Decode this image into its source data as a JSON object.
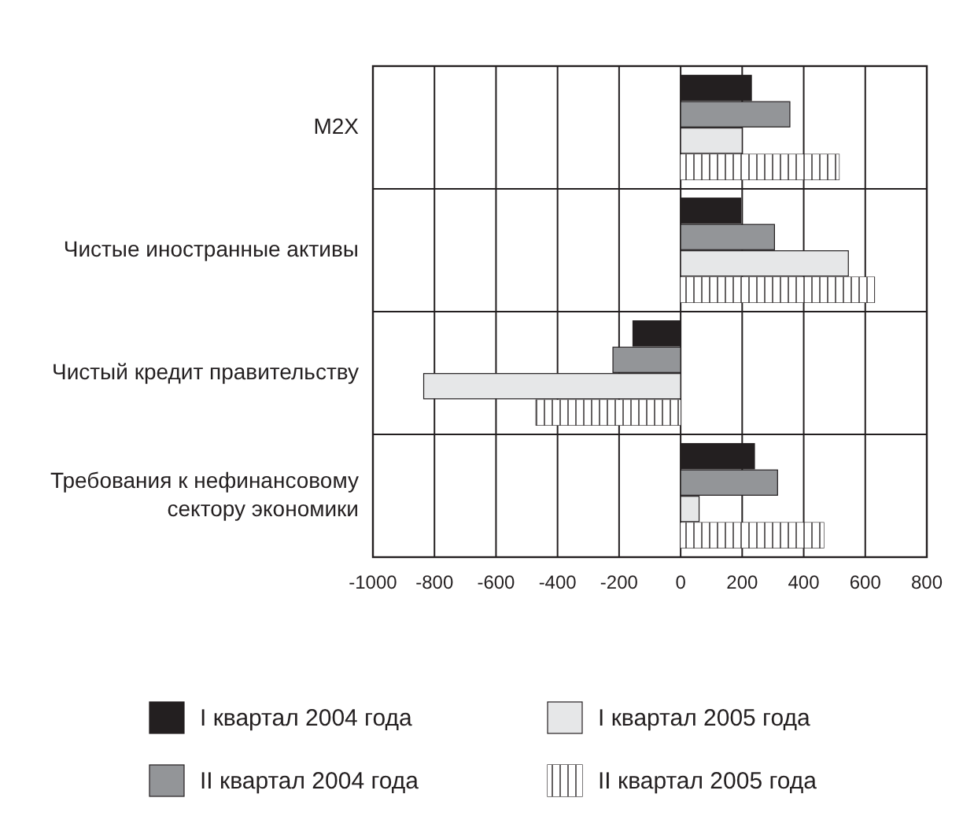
{
  "chart_data": {
    "type": "bar",
    "orientation": "horizontal",
    "categories": [
      "M2X",
      "Чистые иностранные активы",
      "Чистый кредит правительству",
      "Требования к нефинансовому\nсектору экономики"
    ],
    "series": [
      {
        "name": "I квартал 2004 года",
        "color": "#231f20",
        "values": [
          230,
          195,
          -155,
          240
        ]
      },
      {
        "name": "II квартал 2004 года",
        "color": "#939598",
        "values": [
          355,
          305,
          -220,
          315
        ]
      },
      {
        "name": "I квартал 2005 года",
        "color": "#e6e7e8",
        "values": [
          200,
          545,
          -835,
          60
        ]
      },
      {
        "name": "II квартал 2005 года",
        "color": "#ffffff",
        "values": [
          515,
          630,
          -470,
          465
        ]
      }
    ],
    "xlim": [
      -1000,
      800
    ],
    "xticks": [
      -1000,
      -800,
      -600,
      -400,
      -200,
      0,
      200,
      400,
      600,
      800
    ],
    "grid": true,
    "legend": "bottom"
  }
}
